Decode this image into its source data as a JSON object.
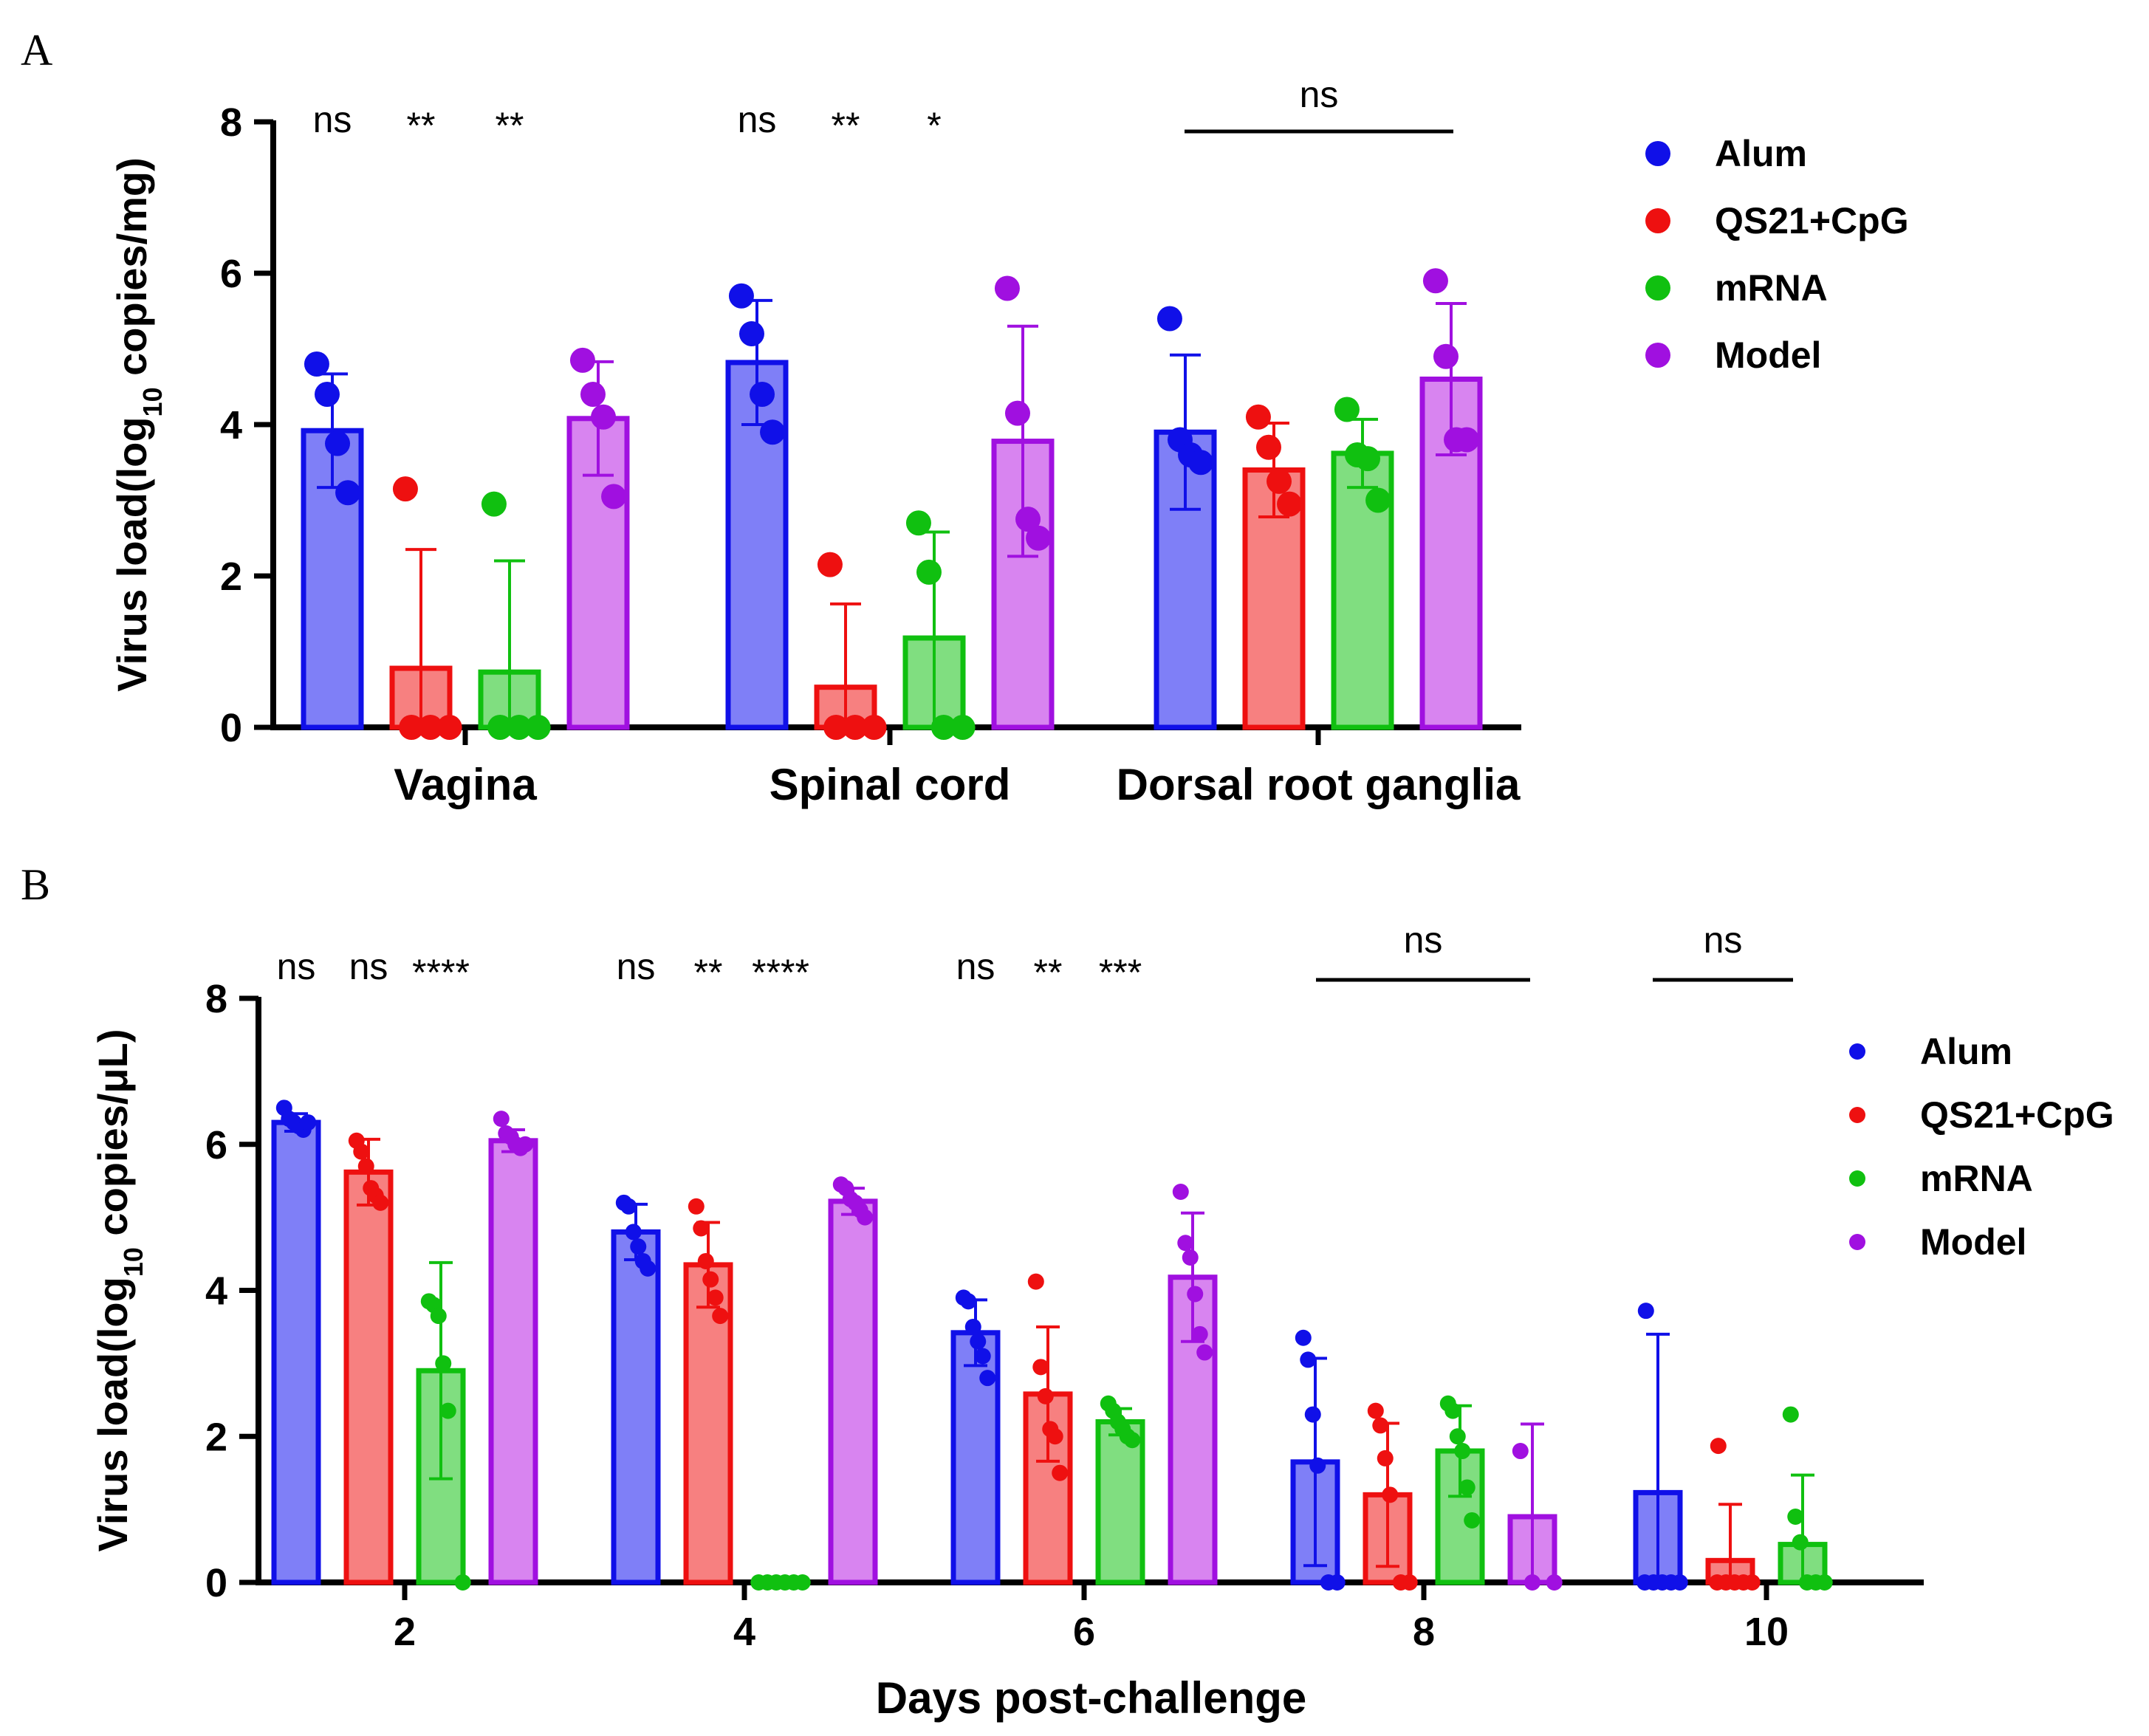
{
  "chart_data": [
    {
      "type": "bar",
      "panel_label": "A",
      "ylabel_prefix": "Virus load(log",
      "ylabel_sub": "10",
      "ylabel_suffix": " copies/mg)",
      "ylim": [
        0,
        8
      ],
      "yticks": [
        "0",
        "2",
        "4",
        "6",
        "8"
      ],
      "categories": [
        "Vagina",
        "Spinal cord",
        "Dorsal root ganglia"
      ],
      "significance": [
        {
          "text": "ns",
          "category": 0,
          "series": 0
        },
        {
          "text": "**",
          "category": 0,
          "series": 1
        },
        {
          "text": "**",
          "category": 0,
          "series": 2
        },
        {
          "text": "ns",
          "category": 1,
          "series": 0
        },
        {
          "text": "**",
          "category": 1,
          "series": 1
        },
        {
          "text": "*",
          "category": 1,
          "series": 2
        },
        {
          "text": "ns",
          "category": 2,
          "span": true
        }
      ],
      "legend": [
        "Alum",
        "QS21+CpG",
        "mRNA",
        "Model"
      ],
      "series": [
        {
          "name": "Alum",
          "color": "#1010e8",
          "fill": "#7f7ff7",
          "values": [
            3.92,
            4.82,
            3.9
          ],
          "sd": [
            0.75,
            0.82,
            1.02
          ],
          "points": [
            [
              4.8,
              4.4,
              3.75,
              3.1
            ],
            [
              5.7,
              5.2,
              4.4,
              3.9
            ],
            [
              5.4,
              3.8,
              3.6,
              3.5
            ]
          ]
        },
        {
          "name": "QS21+CpG",
          "color": "#ee1010",
          "fill": "#f78080",
          "values": [
            0.78,
            0.53,
            3.4
          ],
          "sd": [
            1.57,
            1.1,
            0.62
          ],
          "points": [
            [
              3.15,
              0,
              0,
              0
            ],
            [
              2.15,
              0,
              0,
              0
            ],
            [
              4.1,
              3.7,
              3.25,
              2.95
            ]
          ]
        },
        {
          "name": "mRNA",
          "color": "#10c010",
          "fill": "#80de80",
          "values": [
            0.73,
            1.18,
            3.62
          ],
          "sd": [
            1.47,
            1.4,
            0.45
          ],
          "points": [
            [
              2.95,
              0,
              0,
              0
            ],
            [
              2.7,
              2.05,
              0,
              0
            ],
            [
              4.2,
              3.6,
              3.55,
              3.0
            ]
          ]
        },
        {
          "name": "Model",
          "color": "#a010e0",
          "fill": "#d884f0",
          "values": [
            4.08,
            3.78,
            4.6
          ],
          "sd": [
            0.75,
            1.52,
            1.0
          ],
          "points": [
            [
              4.85,
              4.4,
              4.1,
              3.05
            ],
            [
              5.8,
              4.15,
              2.75,
              2.5
            ],
            [
              5.9,
              4.9,
              3.8,
              3.8
            ]
          ]
        }
      ]
    },
    {
      "type": "bar",
      "panel_label": "B",
      "ylabel_prefix": "Virus load(log",
      "ylabel_sub": "10",
      "ylabel_suffix": " copies/μL)",
      "xlabel": "Days post-challenge",
      "ylim": [
        0,
        8
      ],
      "yticks": [
        "0",
        "2",
        "4",
        "6",
        "8"
      ],
      "categories": [
        "2",
        "4",
        "6",
        "8",
        "10"
      ],
      "significance": [
        {
          "text": "ns",
          "category": 0,
          "series": 0
        },
        {
          "text": "ns",
          "category": 0,
          "series": 1
        },
        {
          "text": "****",
          "category": 0,
          "series": 2
        },
        {
          "text": "ns",
          "category": 1,
          "series": 0
        },
        {
          "text": "**",
          "category": 1,
          "series": 1
        },
        {
          "text": "****",
          "category": 1,
          "series": 2
        },
        {
          "text": "ns",
          "category": 2,
          "series": 0
        },
        {
          "text": "**",
          "category": 2,
          "series": 1
        },
        {
          "text": "***",
          "category": 2,
          "series": 2
        },
        {
          "text": "ns",
          "category": 3,
          "span": true
        },
        {
          "text": "ns",
          "category": 4,
          "span": true
        }
      ],
      "legend": [
        "Alum",
        "QS21+CpG",
        "mRNA",
        "Model"
      ],
      "series": [
        {
          "name": "Alum",
          "color": "#1010e8",
          "fill": "#7f7ff7",
          "values": [
            6.3,
            4.8,
            3.42,
            1.65,
            1.23
          ],
          "sd": [
            0.12,
            0.38,
            0.45,
            1.42,
            2.17
          ],
          "points": [
            [
              6.5,
              6.35,
              6.3,
              6.25,
              6.2,
              6.3
            ],
            [
              5.2,
              5.15,
              4.8,
              4.6,
              4.4,
              4.3
            ],
            [
              3.9,
              3.85,
              3.5,
              3.3,
              3.1,
              2.8
            ],
            [
              3.35,
              3.05,
              2.3,
              1.6,
              0,
              0
            ],
            [
              3.72,
              0,
              0,
              0,
              0,
              0
            ]
          ]
        },
        {
          "name": "QS21+CpG",
          "color": "#ee1010",
          "fill": "#f78080",
          "values": [
            5.62,
            4.35,
            2.58,
            1.2,
            0.3
          ],
          "sd": [
            0.45,
            0.58,
            0.92,
            0.98,
            0.77
          ],
          "points": [
            [
              6.05,
              5.9,
              5.7,
              5.4,
              5.3,
              5.2
            ],
            [
              5.15,
              4.85,
              4.4,
              4.15,
              3.9,
              3.65
            ],
            [
              4.12,
              2.95,
              2.55,
              2.1,
              2.0,
              1.5
            ],
            [
              2.35,
              2.15,
              1.7,
              1.2,
              0,
              0
            ],
            [
              1.87,
              0,
              0,
              0,
              0,
              0
            ]
          ]
        },
        {
          "name": "mRNA",
          "color": "#10c010",
          "fill": "#80de80",
          "values": [
            2.9,
            0.0,
            2.2,
            1.8,
            0.52
          ],
          "sd": [
            1.48,
            0.0,
            0.18,
            0.62,
            0.95
          ],
          "points": [
            [
              3.85,
              3.8,
              3.65,
              3.0,
              2.35,
              0
            ],
            [
              0,
              0,
              0,
              0,
              0,
              0
            ],
            [
              2.45,
              2.35,
              2.2,
              2.1,
              2.0,
              1.95
            ],
            [
              2.45,
              2.35,
              2.0,
              1.8,
              1.3,
              0.85
            ],
            [
              2.3,
              0.9,
              0.55,
              0,
              0,
              0
            ]
          ]
        },
        {
          "name": "Model",
          "color": "#a010e0",
          "fill": "#d884f0",
          "values": [
            6.05,
            5.22,
            4.18,
            0.9,
            null
          ],
          "sd": [
            0.15,
            0.18,
            0.88,
            1.27,
            null
          ],
          "points": [
            [
              6.35,
              6.15,
              6.1,
              6.0,
              5.95,
              6.0
            ],
            [
              5.45,
              5.4,
              5.25,
              5.2,
              5.1,
              5.0
            ],
            [
              5.35,
              4.65,
              4.45,
              3.95,
              3.4,
              3.15
            ],
            [
              1.8,
              0,
              0
            ],
            []
          ]
        }
      ]
    }
  ]
}
